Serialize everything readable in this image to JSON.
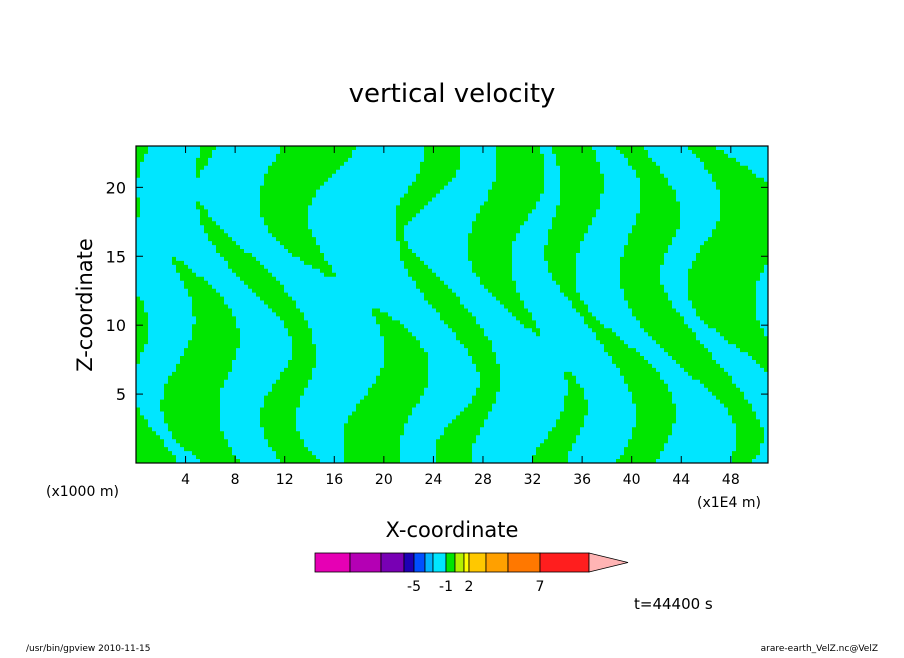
{
  "chart_data": {
    "type": "heatmap",
    "title": "vertical velocity",
    "xlabel": "X-coordinate",
    "ylabel": "Z-coordinate",
    "x_unit_left": "(x1000 m)",
    "x_unit_right": "(x1E4 m)",
    "xlim": [
      0,
      51
    ],
    "ylim": [
      0,
      23
    ],
    "x_ticks": [
      4,
      8,
      12,
      16,
      20,
      24,
      28,
      32,
      36,
      40,
      44,
      48
    ],
    "y_ticks": [
      5,
      10,
      15,
      20
    ],
    "contour_fill_colors": {
      "negative_small": "#00e6ff",
      "positive_small": "#00e600",
      "background": "#00e6ff"
    },
    "colorbar": {
      "colors": [
        "#e600b4",
        "#b400b4",
        "#7800b4",
        "#1e00b4",
        "#0050ff",
        "#00b4ff",
        "#00e6ff",
        "#00e600",
        "#b4f000",
        "#ffff00",
        "#ffc800",
        "#ffa000",
        "#ff7800",
        "#ff1e1e",
        "#ff7878",
        "#ffb4b4"
      ],
      "labels": [
        {
          "text": "-5",
          "index": 3
        },
        {
          "text": "-1",
          "index": 6
        },
        {
          "text": "2",
          "index": 9
        },
        {
          "text": "7",
          "index": 12
        }
      ]
    },
    "time_label": "t=44400 s"
  },
  "footer": {
    "left": "/usr/bin/gpview   2010-11-15",
    "right": "arare-earth_VelZ.nc@VelZ"
  }
}
